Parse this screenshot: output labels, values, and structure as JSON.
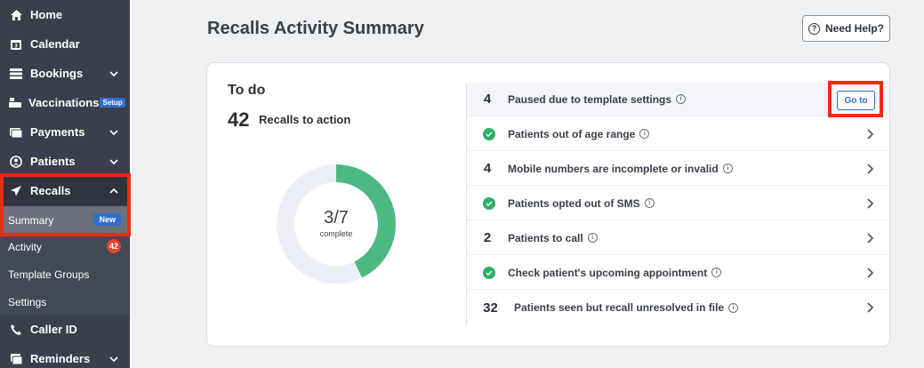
{
  "sidebar": {
    "items": [
      {
        "label": "Home",
        "icon": "home-icon"
      },
      {
        "label": "Calendar",
        "icon": "calendar-icon"
      },
      {
        "label": "Bookings",
        "icon": "bookings-icon"
      },
      {
        "label": "Vaccinations",
        "icon": "vaccinations-icon",
        "badge": "Setup"
      },
      {
        "label": "Payments",
        "icon": "payments-icon"
      },
      {
        "label": "Patients",
        "icon": "patients-icon"
      },
      {
        "label": "Recalls",
        "icon": "send-icon"
      },
      {
        "label": "Caller ID",
        "icon": "phone-icon"
      },
      {
        "label": "Reminders",
        "icon": "reminders-icon"
      }
    ],
    "recalls_sub": [
      {
        "label": "Summary",
        "badge": "New"
      },
      {
        "label": "Activity",
        "badge": "42"
      },
      {
        "label": "Template Groups"
      },
      {
        "label": "Settings"
      }
    ]
  },
  "header": {
    "title": "Recalls Activity Summary",
    "help_label": "Need Help?"
  },
  "todo": {
    "heading": "To do",
    "count": "42",
    "count_label": "Recalls to action",
    "progress_value": "3/7",
    "progress_caption": "complete",
    "progress_fraction": 0.428
  },
  "tasks": [
    {
      "value": "4",
      "label": "Paused due to template settings",
      "action": "Go to"
    },
    {
      "value": "done",
      "label": "Patients out of age range"
    },
    {
      "value": "4",
      "label": "Mobile numbers are incomplete or invalid"
    },
    {
      "value": "done",
      "label": "Patients opted out of SMS"
    },
    {
      "value": "2",
      "label": "Patients to call"
    },
    {
      "value": "done",
      "label": "Check patient's upcoming appointment"
    },
    {
      "value": "32",
      "label": "Patients seen but recall unresolved in file"
    }
  ],
  "colors": {
    "sidebar_bg": "#3a3f4b",
    "accent_blue": "#2f6fd0",
    "success_green": "#2fae67",
    "donut_green": "#4cb983",
    "donut_track": "#eceef6",
    "highlight_red": "#ee2a12",
    "badge_red": "#e2452e"
  }
}
